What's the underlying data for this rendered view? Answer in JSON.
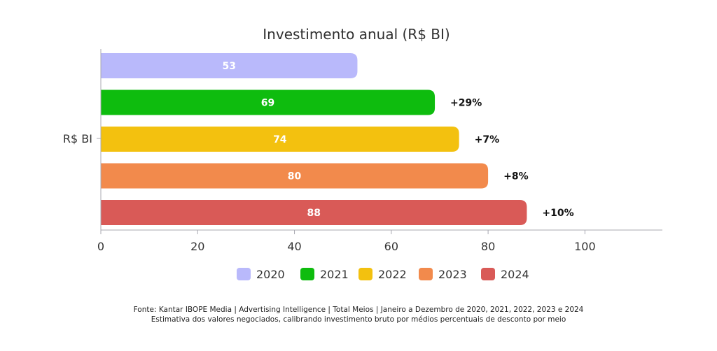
{
  "chart_data": {
    "type": "bar",
    "orientation": "horizontal",
    "title": "Investimento anual (R$ BI)",
    "category_label": "R$ BI",
    "series": [
      {
        "name": "2020",
        "value": 53,
        "label": "53",
        "growth": "",
        "color": "#b9b9fb"
      },
      {
        "name": "2021",
        "value": 69,
        "label": "69",
        "growth": "+29%",
        "color": "#0ebc0e"
      },
      {
        "name": "2022",
        "value": 74,
        "label": "74",
        "growth": "+7%",
        "color": "#f3c10f"
      },
      {
        "name": "2023",
        "value": 80,
        "label": "80",
        "growth": "+8%",
        "color": "#f28a4c"
      },
      {
        "name": "2024",
        "value": 88,
        "label": "88",
        "growth": "+10%",
        "color": "#d95a57"
      }
    ],
    "x_ticks": [
      "0",
      "20",
      "40",
      "60",
      "80",
      "100"
    ],
    "xlim": [
      0,
      116
    ],
    "grid": false,
    "legend_position": "bottom"
  },
  "footnotes": [
    "Fonte: Kantar IBOPE Media | Advertising Intelligence | Total Meios | Janeiro a Dezembro de 2020, 2021, 2022, 2023 e 2024",
    "Estimativa dos valores negociados, calibrando investimento bruto por médios percentuais de desconto por meio"
  ]
}
